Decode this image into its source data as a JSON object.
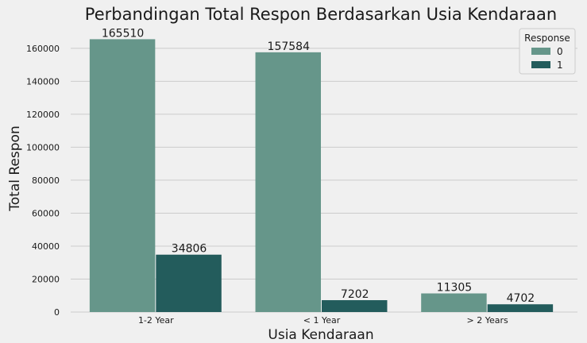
{
  "chart_data": {
    "type": "bar",
    "title": "Perbandingan Total Respon Berdasarkan Usia Kendaraan",
    "xlabel": "Usia Kendaraan",
    "ylabel": "Total Respon",
    "categories": [
      "1-2 Year",
      "< 1 Year",
      "> 2 Years"
    ],
    "series": [
      {
        "name": "0",
        "values": [
          165510,
          157584,
          11305
        ],
        "color": "#66968a"
      },
      {
        "name": "1",
        "values": [
          34806,
          7202,
          4702
        ],
        "color": "#235c5c"
      }
    ],
    "ylim": [
      0,
      171000
    ],
    "yticks": [
      0,
      20000,
      40000,
      60000,
      80000,
      100000,
      120000,
      140000,
      160000
    ],
    "grid": true,
    "legend": {
      "title": "Response",
      "placement": "top-right"
    },
    "background": "#f0f0f0"
  }
}
